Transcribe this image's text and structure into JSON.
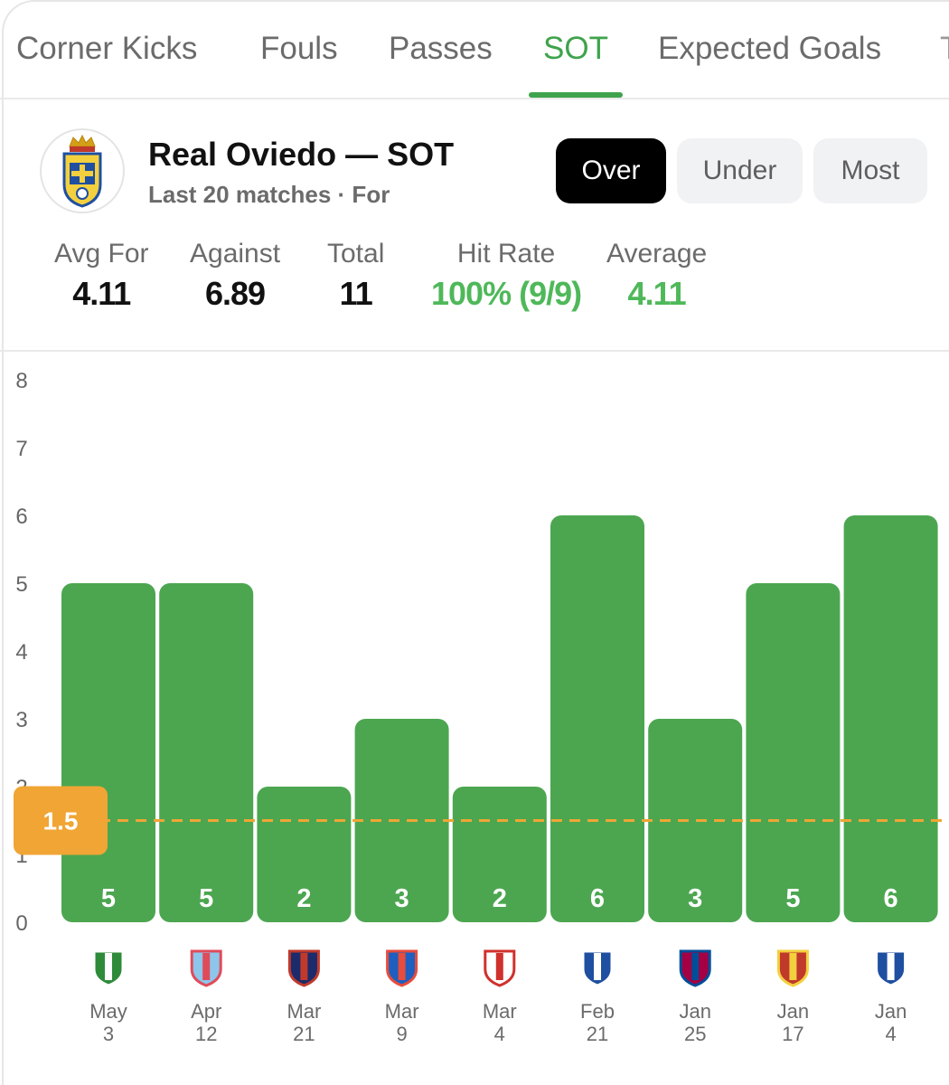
{
  "tabs": [
    {
      "label": "Corner Kicks",
      "active": false
    },
    {
      "label": "Fouls",
      "active": false
    },
    {
      "label": "Passes",
      "active": false
    },
    {
      "label": "SOT",
      "active": true
    },
    {
      "label": "Expected Goals",
      "active": false
    }
  ],
  "header": {
    "team_title": "Real Oviedo — SOT",
    "subtitle": "Last 20 matches · For",
    "crest_icon": "real-oviedo-crest",
    "toggle": [
      {
        "label": "Over",
        "selected": true
      },
      {
        "label": "Under",
        "selected": false
      },
      {
        "label": "Most",
        "selected": false
      }
    ]
  },
  "stats": [
    {
      "label": "Avg For",
      "value": "4.11",
      "accent": false
    },
    {
      "label": "Against",
      "value": "6.89",
      "accent": false
    },
    {
      "label": "Total",
      "value": "11",
      "accent": false
    },
    {
      "label": "Hit Rate",
      "value": "100% (9/9)",
      "accent": true
    },
    {
      "label": "Average",
      "value": "4.11",
      "accent": true
    }
  ],
  "colors": {
    "accent": "#3fa34d",
    "bar": "#4ca650",
    "line": "#f0a534",
    "stat_green": "#4fb85a"
  },
  "chart_data": {
    "type": "bar",
    "yticks": [
      0,
      1,
      2,
      3,
      4,
      5,
      6,
      7,
      8
    ],
    "ylim": [
      0,
      8
    ],
    "threshold": 1.5,
    "threshold_label": "1.5",
    "categories": [
      "May 3",
      "Apr 12",
      "Mar 21",
      "Mar 9",
      "Mar 4",
      "Feb 21",
      "Jan 25",
      "Jan 17",
      "Jan 4"
    ],
    "date_lines": [
      [
        "May",
        "3"
      ],
      [
        "Apr",
        "12"
      ],
      [
        "Mar",
        "21"
      ],
      [
        "Mar",
        "9"
      ],
      [
        "Mar",
        "4"
      ],
      [
        "Feb",
        "21"
      ],
      [
        "Jan",
        "25"
      ],
      [
        "Jan",
        "17"
      ],
      [
        "Jan",
        "4"
      ]
    ],
    "values": [
      5,
      5,
      2,
      3,
      2,
      6,
      3,
      5,
      6
    ],
    "opponent_icons": [
      "real-betis-crest",
      "celta-vigo-crest",
      "levante-crest",
      "espanyol-crest",
      "rayo-vallecano-crest",
      "real-sociedad-crest",
      "barcelona-crest",
      "osasuna-crest",
      "alaves-crest"
    ]
  }
}
